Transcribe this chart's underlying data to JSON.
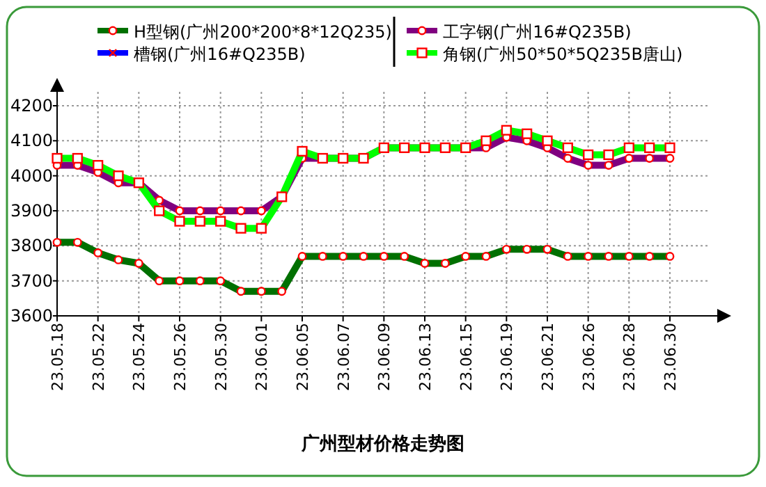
{
  "chart_data": {
    "type": "line",
    "title": "广州型材价格走势图",
    "categories": [
      "23.05.18",
      null,
      "23.05.22",
      null,
      "23.05.24",
      null,
      "23.05.26",
      null,
      "23.05.30",
      null,
      "23.06.01",
      null,
      "23.06.05",
      null,
      "23.06.07",
      null,
      "23.06.09",
      null,
      "23.06.13",
      null,
      "23.06.15",
      null,
      "23.06.19",
      null,
      "23.06.21",
      null,
      "23.06.26",
      null,
      "23.06.28",
      null,
      "23.06.30"
    ],
    "series": [
      {
        "name": "H型钢(广州200*200*8*12Q235)",
        "color": "#007000",
        "marker": "circle",
        "values": [
          3810,
          3810,
          3780,
          3760,
          3750,
          3700,
          3700,
          3700,
          3700,
          3670,
          3670,
          3670,
          3770,
          3770,
          3770,
          3770,
          3770,
          3770,
          3750,
          3750,
          3770,
          3770,
          3790,
          3790,
          3790,
          3770,
          3770,
          3770,
          3770,
          3770,
          3770
        ]
      },
      {
        "name": "工字钢(广州16#Q235B)",
        "color": "#800080",
        "marker": "circle",
        "values": [
          4030,
          4030,
          4010,
          3980,
          3980,
          3930,
          3900,
          3900,
          3900,
          3900,
          3900,
          3940,
          4050,
          4050,
          4050,
          4050,
          4080,
          4080,
          4080,
          4080,
          4080,
          4080,
          4110,
          4100,
          4080,
          4050,
          4030,
          4030,
          4050,
          4050,
          4050
        ]
      },
      {
        "name": "槽钢(广州16#Q235B)",
        "color": "#0000ff",
        "marker": "cross",
        "values": [
          null,
          null,
          null,
          null,
          null,
          null,
          null,
          null,
          null,
          null,
          null,
          null,
          null,
          null,
          null,
          null,
          null,
          null,
          null,
          null,
          null,
          null,
          null,
          null,
          null,
          null,
          null,
          null,
          null,
          null,
          null
        ]
      },
      {
        "name": "角钢(广州50*50*5Q235B唐山)",
        "color": "#00ff00",
        "marker": "square",
        "values": [
          4050,
          4050,
          4030,
          4000,
          3980,
          3900,
          3870,
          3870,
          3870,
          3850,
          3850,
          3940,
          4070,
          4050,
          4050,
          4050,
          4080,
          4080,
          4080,
          4080,
          4080,
          4100,
          4130,
          4120,
          4100,
          4080,
          4060,
          4060,
          4080,
          4080,
          4080
        ]
      }
    ],
    "ylim": [
      3600,
      4200
    ],
    "yticks": [
      3600,
      3700,
      3800,
      3900,
      4000,
      4100,
      4200
    ],
    "grid": true,
    "legend": "top"
  }
}
